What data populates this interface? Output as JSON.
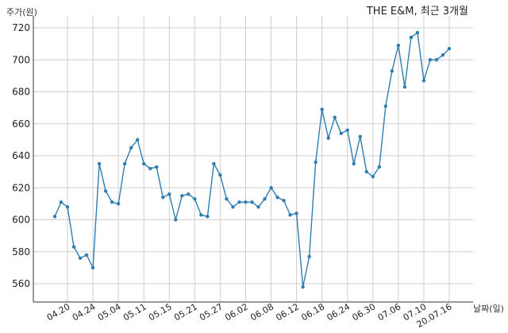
{
  "chart_data": {
    "type": "line",
    "title": "THE E&M, 최근 3개월",
    "ylabel": "주가(원)",
    "xlabel": "날짜(일)",
    "ylim": [
      550,
      725
    ],
    "yticks": [
      560,
      580,
      600,
      620,
      640,
      660,
      680,
      700,
      720
    ],
    "grid": true,
    "xtick_labels": [
      {
        "index": 2,
        "label": "04.20"
      },
      {
        "index": 6,
        "label": "04.24"
      },
      {
        "index": 10,
        "label": "05.04"
      },
      {
        "index": 14,
        "label": "05.11"
      },
      {
        "index": 18,
        "label": "05.15"
      },
      {
        "index": 22,
        "label": "05.21"
      },
      {
        "index": 26,
        "label": "05.27"
      },
      {
        "index": 30,
        "label": "06.02"
      },
      {
        "index": 34,
        "label": "06.08"
      },
      {
        "index": 38,
        "label": "06.12"
      },
      {
        "index": 42,
        "label": "06.18"
      },
      {
        "index": 46,
        "label": "06.24"
      },
      {
        "index": 50,
        "label": "06.30"
      },
      {
        "index": 54,
        "label": "07.06"
      },
      {
        "index": 58,
        "label": "07.10"
      },
      {
        "index": 62,
        "label": "20.07.16"
      }
    ],
    "values": [
      602,
      611,
      608,
      583,
      576,
      578,
      570,
      635,
      618,
      611,
      610,
      635,
      645,
      650,
      635,
      632,
      633,
      614,
      616,
      600,
      615,
      616,
      613,
      603,
      602,
      635,
      628,
      613,
      608,
      611,
      611,
      611,
      608,
      613,
      620,
      614,
      612,
      603,
      604,
      558,
      577,
      636,
      669,
      651,
      664,
      654,
      656,
      635,
      652,
      630,
      627,
      633,
      671,
      693,
      709,
      683,
      714,
      717,
      687,
      700,
      700,
      703,
      707
    ]
  }
}
